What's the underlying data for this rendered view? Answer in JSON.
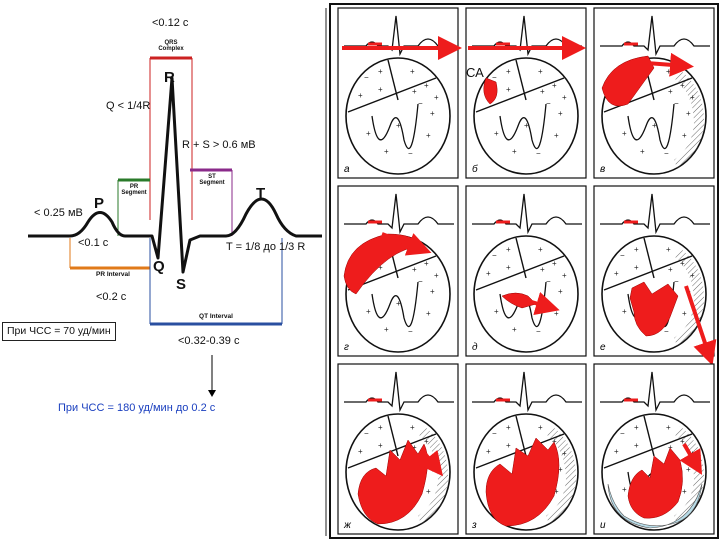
{
  "ecg": {
    "qrs_duration": "<0.12 с",
    "qrs_complex_label": "QRS\nComplex",
    "q_rule": "Q < 1/4R",
    "rs_rule": "R + S > 0.6 мВ",
    "pr_segment_label": "PR\nSegment",
    "st_segment_label": "ST\nSegment",
    "p_amplitude": "< 0.25 мВ",
    "p_duration": "<0.1 с",
    "t_rule": "T = 1/8 до 1/3 R",
    "pr_interval_label": "PR Interval",
    "pr_interval_value": "<0.2 с",
    "qt_interval_label": "QT Interval",
    "qt_interval_value": "<0.32-0.39 с",
    "hr_70": "При ЧСС = 70 уд/мин",
    "hr_180": "При ЧСС = 180 уд/мин до 0.2 с",
    "waves": {
      "p": "P",
      "q": "Q",
      "r": "R",
      "s": "S",
      "t": "T"
    }
  },
  "panels": {
    "sa_label": "СА",
    "items": [
      {
        "id": "a",
        "label": "а"
      },
      {
        "id": "b",
        "label": "б"
      },
      {
        "id": "v",
        "label": "в"
      },
      {
        "id": "g",
        "label": "г"
      },
      {
        "id": "d",
        "label": "д"
      },
      {
        "id": "e",
        "label": "е"
      },
      {
        "id": "zh",
        "label": "ж"
      },
      {
        "id": "z",
        "label": "з"
      },
      {
        "id": "i",
        "label": "и"
      }
    ]
  },
  "colors": {
    "excitation": "#ee1c1c",
    "repolarization": "#b8dce8",
    "segment_red": "#cc2222",
    "segment_green": "#2a7a2a",
    "segment_purple": "#8a2a8a",
    "interval_orange": "#e07a1a",
    "interval_blue": "#2a4fa0"
  }
}
